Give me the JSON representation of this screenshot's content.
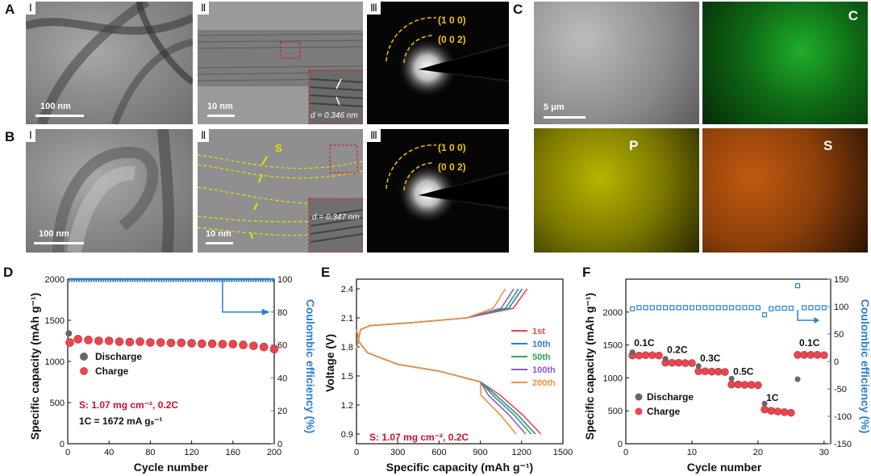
{
  "panels": {
    "A": "A",
    "B": "B",
    "C": "C",
    "D": "D",
    "E": "E",
    "F": "F",
    "roman": [
      "Ⅰ",
      "Ⅱ",
      "Ⅲ"
    ]
  },
  "tem": {
    "a1_scale": "100 nm",
    "a2_scale": "10 nm",
    "a2_d": "d = 0.346 nm",
    "b1_scale": "100 nm",
    "b2_scale": "10 nm",
    "b2_d": "d = 0.347 nm",
    "b2_s_label": "S",
    "saed_top": "(1 0 0)",
    "saed_bottom": "(0 0 2)"
  },
  "sem": {
    "scale": "5 μm",
    "maps": [
      "C",
      "P",
      "S"
    ],
    "colors": {
      "C": "#1fae2a",
      "P": "#b8b400",
      "S": "#c25a10"
    }
  },
  "chart_data": [
    {
      "type": "scatter",
      "panel": "D",
      "xlabel": "Cycle number",
      "ylabel_left": "Specific capacity (mAh g⁻¹)",
      "ylabel_right": "Coulombic efficiency (%)",
      "xlim": [
        0,
        200
      ],
      "ylim_left": [
        0,
        2000
      ],
      "ylim_right": [
        0,
        100
      ],
      "xticks": [
        0,
        40,
        80,
        120,
        160,
        200
      ],
      "yticks_left": [
        0,
        500,
        1000,
        1500,
        2000
      ],
      "yticks_right": [
        0,
        20,
        40,
        60,
        80,
        100
      ],
      "legend": [
        "Discharge",
        "Charge"
      ],
      "annotation_1": "S: 1.07 mg cm⁻²,  0.2C",
      "annotation_2": "1C = 1672 mA gₛ⁻¹",
      "series": [
        {
          "name": "Discharge",
          "axis": "left",
          "x": [
            1
          ],
          "values": [
            1340
          ]
        },
        {
          "name": "Charge",
          "axis": "left",
          "x": [
            2,
            10,
            20,
            30,
            40,
            50,
            60,
            70,
            80,
            90,
            100,
            110,
            120,
            130,
            140,
            150,
            160,
            170,
            180,
            190,
            200
          ],
          "values": [
            1230,
            1270,
            1260,
            1250,
            1250,
            1240,
            1235,
            1240,
            1230,
            1230,
            1225,
            1225,
            1220,
            1215,
            1215,
            1210,
            1210,
            1200,
            1190,
            1175,
            1150
          ]
        },
        {
          "name": "Coulombic efficiency",
          "axis": "right",
          "x": [
            1,
            200
          ],
          "values": [
            99.5,
            99.5
          ]
        }
      ],
      "colors": {
        "discharge": "#666666",
        "charge": "#e8474f",
        "ce": "#2a7fd4"
      }
    },
    {
      "type": "line",
      "panel": "E",
      "xlabel": "Specific capacity (mAh g⁻¹)",
      "ylabel": "Voltage (V)",
      "xlim": [
        0,
        1500
      ],
      "ylim": [
        0.8,
        2.5
      ],
      "xticks": [
        0,
        300,
        600,
        900,
        1200,
        1500
      ],
      "yticks": [
        0.9,
        1.2,
        1.5,
        1.8,
        2.1,
        2.4
      ],
      "annotation": "S: 1.07 mg cm⁻²,  0.2C",
      "series": [
        {
          "name": "1st",
          "color": "#e8474f",
          "discharge_end": 1340
        },
        {
          "name": "10th",
          "color": "#2a7fd4",
          "discharge_end": 1300
        },
        {
          "name": "50th",
          "color": "#2fa84f",
          "discharge_end": 1270
        },
        {
          "name": "100th",
          "color": "#8e5bd0",
          "discharge_end": 1230
        },
        {
          "name": "200th",
          "color": "#f0913a",
          "discharge_end": 1160
        }
      ]
    },
    {
      "type": "scatter",
      "panel": "F",
      "xlabel": "Cycle number",
      "ylabel_left": "Specific capacity (mAh g⁻¹)",
      "ylabel_right": "Coulombic efficiency (%)",
      "xlim": [
        0,
        31
      ],
      "ylim_left": [
        0,
        2500
      ],
      "ylim_right": [
        -150,
        150
      ],
      "xticks": [
        0,
        10,
        20,
        30
      ],
      "yticks_left": [
        0,
        500,
        1000,
        1500,
        2000
      ],
      "yticks_right": [
        -150,
        -100,
        -50,
        0,
        50,
        100,
        150
      ],
      "legend": [
        "Discharge",
        "Charge"
      ],
      "rate_labels": [
        "0.1C",
        "0.2C",
        "0.3C",
        "0.5C",
        "1C",
        "0.1C"
      ],
      "series": [
        {
          "name": "Discharge",
          "x": [
            1,
            6,
            11,
            16,
            21,
            26
          ],
          "values": [
            1390,
            1290,
            1180,
            990,
            610,
            980
          ]
        },
        {
          "name": "Charge",
          "x": [
            1,
            2,
            3,
            4,
            5,
            6,
            7,
            8,
            9,
            10,
            11,
            12,
            13,
            14,
            15,
            16,
            17,
            18,
            19,
            20,
            21,
            22,
            23,
            24,
            25,
            26,
            27,
            28,
            29,
            30
          ],
          "values": [
            1340,
            1340,
            1345,
            1345,
            1340,
            1230,
            1230,
            1230,
            1225,
            1225,
            1100,
            1100,
            1095,
            1095,
            1090,
            900,
            900,
            895,
            895,
            890,
            520,
            500,
            490,
            480,
            470,
            1350,
            1350,
            1350,
            1350,
            1345
          ]
        },
        {
          "name": "Coulombic efficiency",
          "x": [
            1,
            2,
            3,
            4,
            5,
            6,
            7,
            8,
            9,
            10,
            11,
            12,
            13,
            14,
            15,
            16,
            17,
            18,
            19,
            20,
            21,
            22,
            23,
            24,
            25,
            26,
            27,
            28,
            29,
            30
          ],
          "values": [
            96,
            98,
            98,
            98,
            98,
            98,
            98,
            98,
            98,
            98,
            98,
            98,
            98,
            98,
            98,
            98,
            98,
            98,
            98,
            98,
            85,
            96,
            97,
            97,
            97,
            138,
            98,
            98,
            98,
            98
          ]
        }
      ],
      "colors": {
        "discharge": "#666666",
        "charge": "#e8474f",
        "ce": "#2a7fd4"
      }
    }
  ]
}
